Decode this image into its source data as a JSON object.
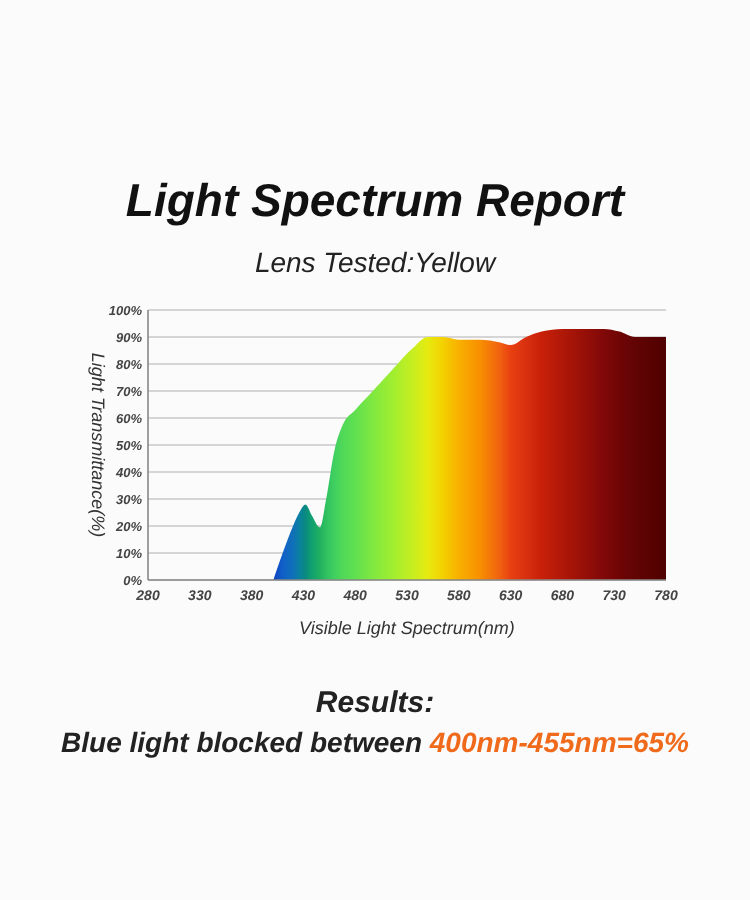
{
  "chart_data": {
    "type": "area",
    "title": "Light Spectrum Report",
    "subtitle": "Lens Tested:Yellow",
    "xlabel": "Visible Light Spectrum(nm)",
    "ylabel": "Light Transmittance(%)",
    "annotations": [
      "Results:",
      "Blue light blocked between",
      "400nm-455nm=65%"
    ],
    "series": [
      {
        "x": [
          401,
          410,
          420,
          426,
          432,
          438,
          446,
          452,
          460,
          468,
          480,
          497,
          516,
          536,
          550,
          565,
          580,
          600,
          620,
          630,
          645,
          660,
          680,
          700,
          720,
          735,
          750,
          780
        ],
        "values": [
          0,
          10,
          20,
          25,
          28,
          24,
          19.5,
          30,
          48,
          57.5,
          63,
          70,
          78,
          86,
          90,
          90,
          89,
          89,
          88,
          87,
          90,
          92,
          93,
          93,
          93,
          92,
          90,
          90
        ],
        "colors": [
          "#1040c0",
          "#1060c8",
          "#1070b8",
          "#0a80a0",
          "#0a8a80",
          "#10a070",
          "#20b060",
          "#30c060",
          "#40d060",
          "#50d858",
          "#60e050",
          "#80e840",
          "#a0ee30",
          "#c8ee20",
          "#e6ea10",
          "#f4d000",
          "#f8b000",
          "#f89000",
          "#f06010",
          "#e84010",
          "#d83010",
          "#c82008",
          "#b01808",
          "#981008",
          "#800808",
          "#700505",
          "#620404",
          "#500000"
        ]
      }
    ],
    "xlim": [
      280,
      780
    ],
    "xticks": [
      280,
      330,
      380,
      430,
      480,
      530,
      580,
      630,
      680,
      730,
      780
    ],
    "ylim": [
      0,
      100
    ],
    "yticks": [
      {
        "value": 0,
        "label": "0%"
      },
      {
        "value": 10,
        "label": "10%"
      },
      {
        "value": 20,
        "label": "20%"
      },
      {
        "value": 30,
        "label": "30%"
      },
      {
        "value": 40,
        "label": "40%"
      },
      {
        "value": 50,
        "label": "50%"
      },
      {
        "value": 60,
        "label": "60%"
      },
      {
        "value": 70,
        "label": "70%"
      },
      {
        "value": 80,
        "label": "80%"
      },
      {
        "value": 90,
        "label": "90%"
      },
      {
        "value": 100,
        "label": "100%"
      }
    ],
    "grid": "y"
  }
}
